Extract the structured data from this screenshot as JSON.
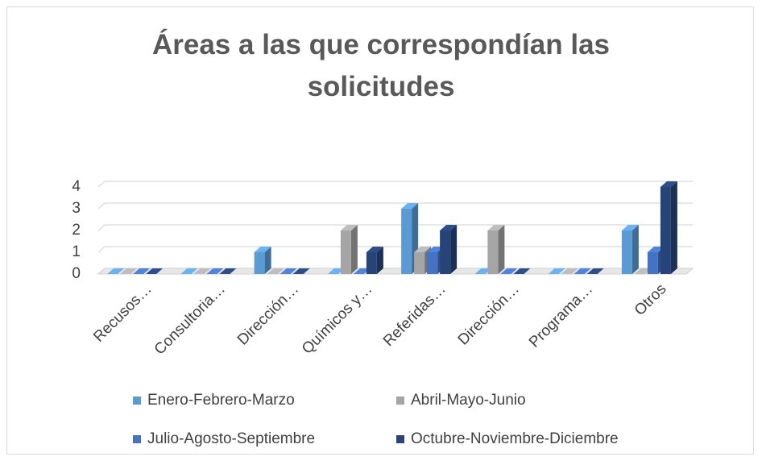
{
  "chart_data": {
    "type": "bar3d",
    "title": "Áreas a las que correspondían las solicitudes",
    "categories": [
      "Recusos…",
      "Consultoria…",
      "Dirección…",
      "Químicos y…",
      "Referidas…",
      "Dirección…",
      "Programa…",
      "Otros"
    ],
    "series": [
      {
        "name": "Enero-Febrero-Marzo",
        "color": "#5b9bd5",
        "values": [
          0,
          0,
          1,
          0,
          3,
          0,
          0,
          2
        ]
      },
      {
        "name": "Abril-Mayo-Junio",
        "color": "#a5a5a5",
        "values": [
          0,
          0,
          0,
          2,
          1,
          2,
          0,
          0
        ]
      },
      {
        "name": "Julio-Agosto-Septiembre",
        "color": "#4472c4",
        "values": [
          0,
          0,
          0,
          0,
          1,
          0,
          0,
          1
        ]
      },
      {
        "name": "Octubre-Noviembre-Diciembre",
        "color": "#264478",
        "values": [
          0,
          0,
          0,
          1,
          2,
          0,
          0,
          4
        ]
      }
    ],
    "ylim": [
      0,
      4
    ],
    "yticks": [
      0,
      1,
      2,
      3,
      4
    ],
    "grid": true,
    "legend": "bottom"
  }
}
